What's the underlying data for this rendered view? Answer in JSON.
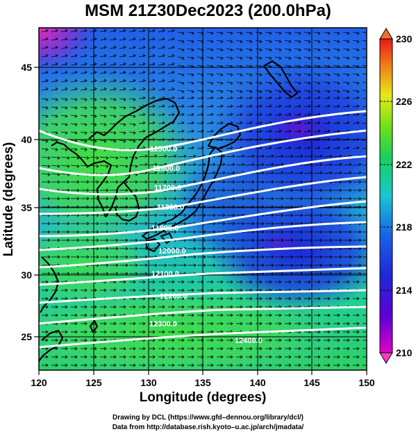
{
  "title": "MSM 21Z30Dec2023 (200.0hPa)",
  "xlabel": "Longitude (degrees)",
  "ylabel": "Latitude  (degrees)",
  "credits": [
    "Drawing by DCL (https://www.gfd–dennou.org/library/dcl/)",
    "Data from http://database.rish.kyoto–u.ac.jp/arch/jmadata/"
  ],
  "x_ticks": [
    "120",
    "125",
    "130",
    "135",
    "140",
    "145",
    "150"
  ],
  "y_ticks": [
    "45",
    "40",
    "35",
    "30",
    "25"
  ],
  "colorbar": {
    "ticks": [
      "230",
      "226",
      "222",
      "218",
      "214",
      "210"
    ],
    "min": 210,
    "max": 230
  },
  "contour_labels": [
    "11500.0",
    "11600.0",
    "11700.0",
    "11800.0",
    "11900.0",
    "12000.0",
    "12100.0",
    "12200.0",
    "12300.0",
    "12400.0"
  ],
  "chart_data": {
    "type": "heatmap",
    "title": "MSM 21Z30Dec2023 (200.0hPa)",
    "xlabel": "Longitude (degrees)",
    "ylabel": "Latitude  (degrees)",
    "xlim": [
      120,
      150
    ],
    "ylim": [
      22.4,
      47.6
    ],
    "colorbar_range": [
      210,
      230
    ],
    "overlays": [
      "temperature shading",
      "wind vectors",
      "geopotential height contours"
    ],
    "contour_levels": [
      11500,
      11600,
      11700,
      11800,
      11900,
      12000,
      12100,
      12200,
      12300,
      12400
    ]
  }
}
